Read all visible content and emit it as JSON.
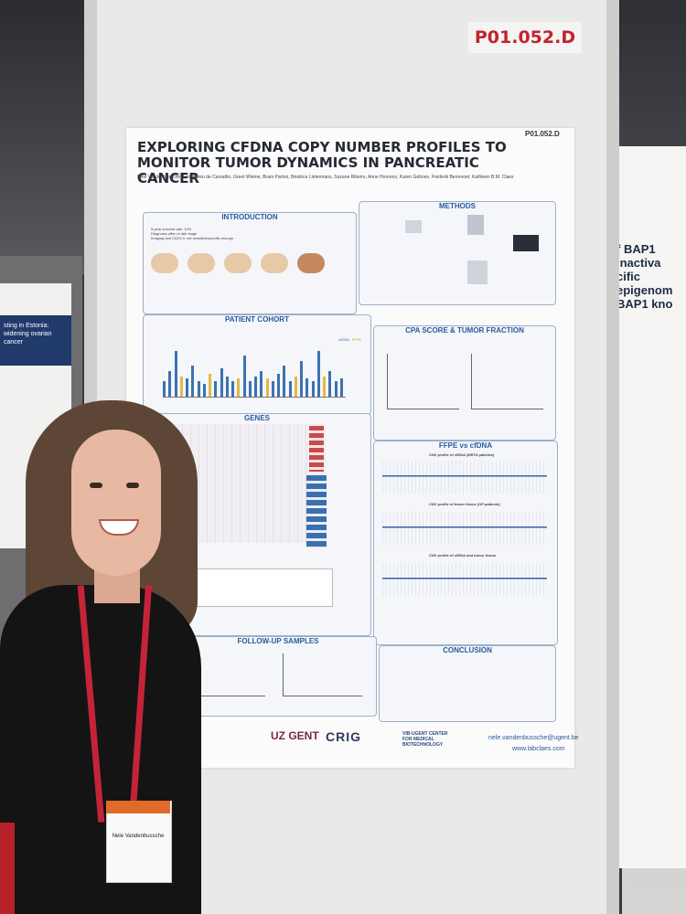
{
  "booth": {
    "poster_id_tag": "P01.052.D"
  },
  "left_neighbor": {
    "title": "sting in Estonia: widening ovarian cancer"
  },
  "right_neighbor": {
    "title": "f BAP1 inactiva cific epigenom BAP1 kno"
  },
  "poster": {
    "code": "P01.052.D",
    "title": "EXPLORING CFDNA COPY NUMBER PROFILES TO MONITOR TUMOR DYNAMICS IN PANCREATIC CANCER",
    "authors": "Nele Vandenbussche, Lula Abreu de Carvalho, Greet Wieme, Bram Parton, Béatrice Lintermans, Suzane Ribeiro, Anne Hoorens, Karen Geboes, Frederik Berrevoet, Kathleen B.M. Claes",
    "sections": {
      "intro": "INTRODUCTION",
      "methods": "METHODS",
      "cohort": "PATIENT COHORT",
      "cpa": "CPA SCORE & TUMOR FRACTION",
      "genes": "GENES",
      "ffpe": "FFPE vs cfDNA",
      "followup": "FOLLOW-UP SAMPLES",
      "conclusion": "CONCLUSION"
    },
    "intro_bullets": [
      "5-year survival rate: 12%",
      "Diagnosis often in late stage",
      "Imaging and CA19-9: not sensitive/specific enough"
    ],
    "cohort_legend": [
      "cfDNA",
      "FFPE"
    ],
    "cohort_series": [
      0.3,
      0.5,
      0.9,
      0.4,
      0.35,
      0.6,
      0.3,
      0.25,
      0.45,
      0.3,
      0.55,
      0.4,
      0.3,
      0.35,
      0.8,
      0.3,
      0.4,
      0.5,
      0.35,
      0.3,
      0.45,
      0.6,
      0.3,
      0.4,
      0.7,
      0.35,
      0.3,
      0.9,
      0.4,
      0.5,
      0.3,
      0.35
    ],
    "ffpe_titles": [
      "CNV profile of cfDNA (MRTA patients)",
      "CNV profile of tumor tissue (OP patients)",
      "CNV profile of cfDNA and tumor tissue"
    ],
    "email": "nele.vandenbussche@ugent.be",
    "website": "www.labclaes.com"
  },
  "logos": {
    "uz": "UZ GENT",
    "crig": "CRIG",
    "vib": "VIB-UGENT CENTER FOR MEDICAL BIOTECHNOLOGY"
  },
  "badge": {
    "name": "Nele Vandenbussche"
  }
}
